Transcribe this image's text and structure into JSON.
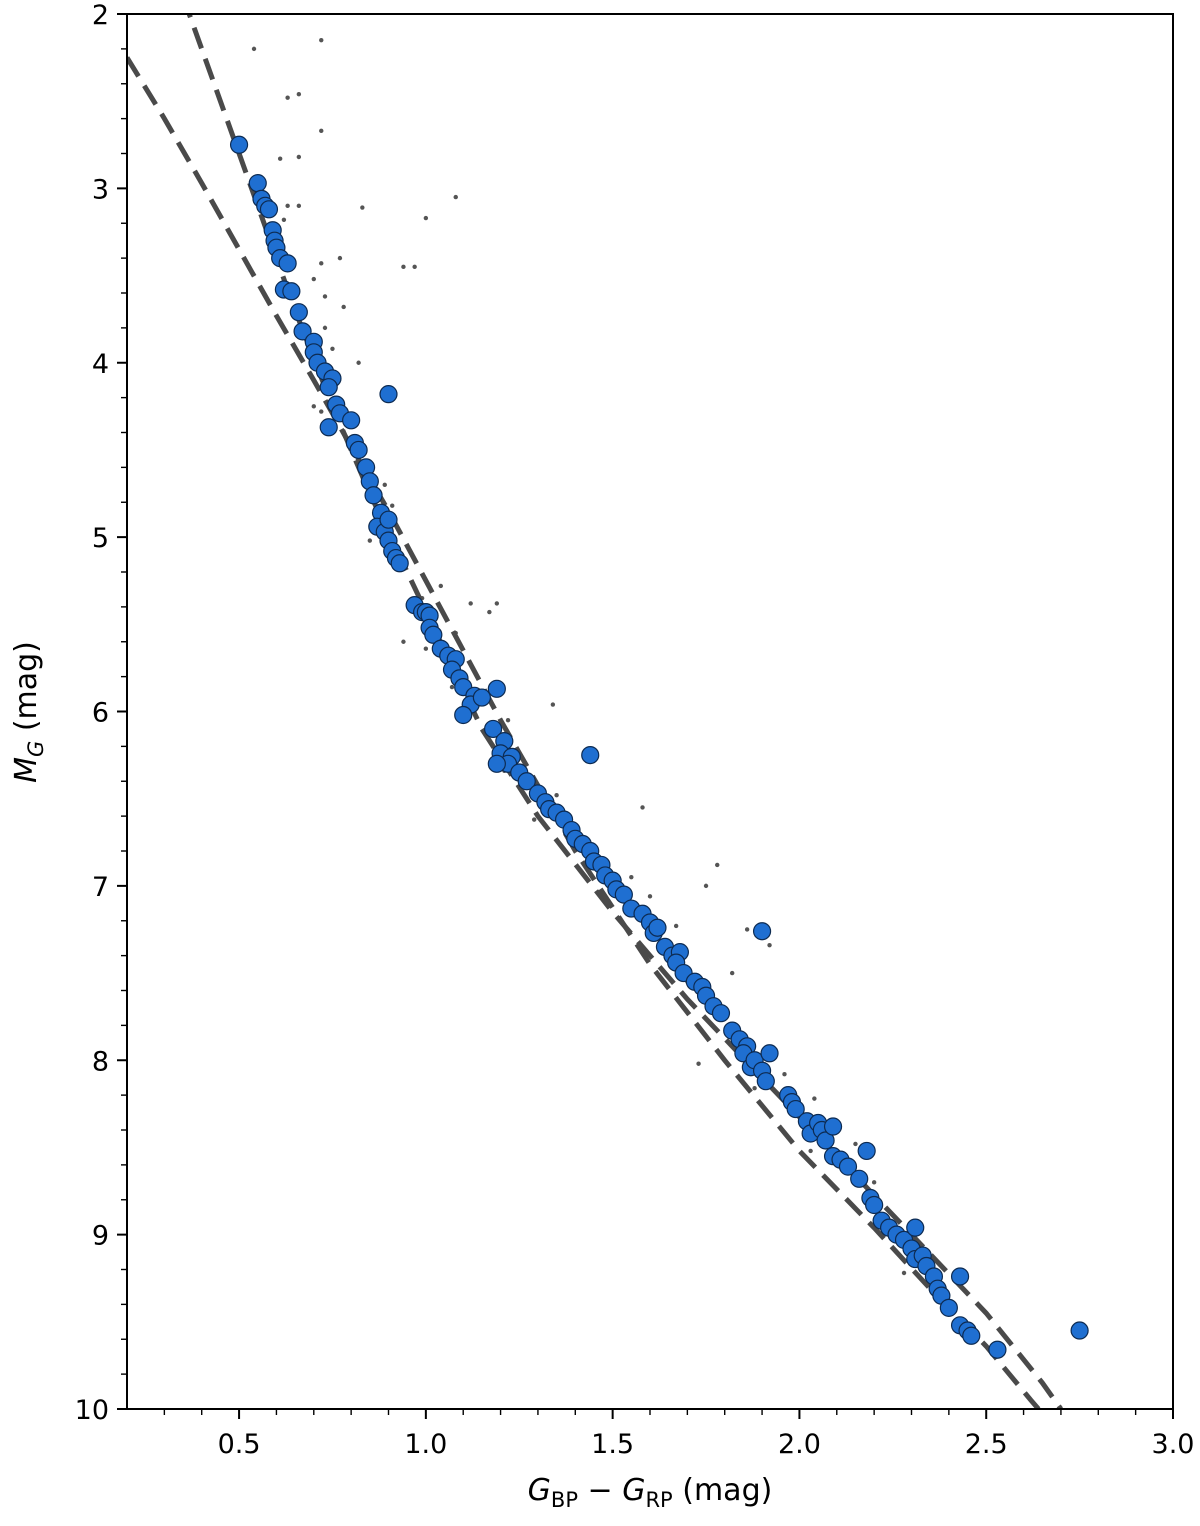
{
  "chart_data": {
    "type": "scatter",
    "title": "",
    "xlabel": {
      "main": "G",
      "sub1": "BP",
      "minus": " − ",
      "main2": "G",
      "sub2": "RP",
      "unit": " (mag)"
    },
    "ylabel": {
      "main": "M",
      "sub": "G",
      "unit": " (mag)"
    },
    "xlim": [
      0.2,
      3.0
    ],
    "ylim": [
      10,
      2
    ],
    "y_inverted": true,
    "grid": false,
    "x_ticks": [
      "0.5",
      "1.0",
      "1.5",
      "2.0",
      "2.5",
      "3.0"
    ],
    "y_ticks": [
      "2",
      "3",
      "4",
      "5",
      "6",
      "7",
      "8",
      "9",
      "10"
    ],
    "colors": {
      "members": "#1f6fd1",
      "members_edge": "#0d2b52",
      "field": "#555555",
      "fit": "#4a4a4a"
    },
    "series": [
      {
        "kind": "members",
        "points": [
          [
            0.5,
            2.75
          ],
          [
            0.55,
            2.97
          ],
          [
            0.56,
            3.06
          ],
          [
            0.57,
            3.1
          ],
          [
            0.58,
            3.12
          ],
          [
            0.59,
            3.24
          ],
          [
            0.595,
            3.3
          ],
          [
            0.6,
            3.34
          ],
          [
            0.61,
            3.4
          ],
          [
            0.63,
            3.43
          ],
          [
            0.62,
            3.58
          ],
          [
            0.64,
            3.59
          ],
          [
            0.66,
            3.71
          ],
          [
            0.67,
            3.82
          ],
          [
            0.7,
            3.88
          ],
          [
            0.7,
            3.94
          ],
          [
            0.71,
            4.0
          ],
          [
            0.73,
            4.05
          ],
          [
            0.75,
            4.09
          ],
          [
            0.74,
            4.14
          ],
          [
            0.76,
            4.24
          ],
          [
            0.77,
            4.29
          ],
          [
            0.8,
            4.33
          ],
          [
            0.74,
            4.37
          ],
          [
            0.81,
            4.46
          ],
          [
            0.82,
            4.5
          ],
          [
            0.84,
            4.6
          ],
          [
            0.85,
            4.68
          ],
          [
            0.86,
            4.76
          ],
          [
            0.88,
            4.86
          ],
          [
            0.87,
            4.94
          ],
          [
            0.89,
            4.97
          ],
          [
            0.9,
            4.9
          ],
          [
            0.9,
            5.02
          ],
          [
            0.91,
            5.08
          ],
          [
            0.92,
            5.12
          ],
          [
            0.93,
            5.15
          ],
          [
            0.97,
            5.39
          ],
          [
            0.99,
            5.43
          ],
          [
            1.0,
            5.43
          ],
          [
            1.01,
            5.45
          ],
          [
            1.01,
            5.52
          ],
          [
            1.02,
            5.56
          ],
          [
            1.04,
            5.64
          ],
          [
            1.06,
            5.68
          ],
          [
            1.08,
            5.7
          ],
          [
            1.07,
            5.76
          ],
          [
            1.09,
            5.81
          ],
          [
            1.1,
            5.86
          ],
          [
            1.13,
            5.91
          ],
          [
            1.12,
            5.96
          ],
          [
            1.15,
            5.92
          ],
          [
            1.1,
            6.02
          ],
          [
            1.19,
            5.87
          ],
          [
            1.18,
            6.1
          ],
          [
            1.21,
            6.17
          ],
          [
            1.2,
            6.24
          ],
          [
            1.23,
            6.26
          ],
          [
            1.22,
            6.3
          ],
          [
            1.19,
            6.3
          ],
          [
            1.25,
            6.35
          ],
          [
            1.27,
            6.4
          ],
          [
            1.3,
            6.47
          ],
          [
            1.32,
            6.52
          ],
          [
            1.33,
            6.56
          ],
          [
            1.35,
            6.58
          ],
          [
            1.37,
            6.62
          ],
          [
            1.39,
            6.68
          ],
          [
            1.4,
            6.73
          ],
          [
            1.42,
            6.76
          ],
          [
            1.44,
            6.8
          ],
          [
            1.45,
            6.86
          ],
          [
            1.47,
            6.88
          ],
          [
            1.48,
            6.94
          ],
          [
            1.5,
            6.97
          ],
          [
            1.51,
            7.02
          ],
          [
            1.53,
            7.05
          ],
          [
            1.55,
            7.13
          ],
          [
            1.58,
            7.16
          ],
          [
            1.6,
            7.21
          ],
          [
            1.61,
            7.27
          ],
          [
            1.62,
            7.24
          ],
          [
            1.64,
            7.35
          ],
          [
            1.66,
            7.4
          ],
          [
            1.68,
            7.38
          ],
          [
            1.67,
            7.44
          ],
          [
            1.69,
            7.5
          ],
          [
            1.72,
            7.55
          ],
          [
            1.74,
            7.58
          ],
          [
            1.75,
            7.63
          ],
          [
            1.77,
            7.69
          ],
          [
            1.79,
            7.73
          ],
          [
            1.82,
            7.83
          ],
          [
            1.84,
            7.88
          ],
          [
            1.86,
            7.92
          ],
          [
            1.85,
            7.96
          ],
          [
            1.87,
            8.04
          ],
          [
            1.88,
            8.0
          ],
          [
            1.9,
            8.06
          ],
          [
            1.91,
            8.12
          ],
          [
            1.92,
            7.96
          ],
          [
            1.44,
            6.25
          ],
          [
            0.9,
            4.18
          ],
          [
            1.9,
            7.26
          ],
          [
            1.97,
            8.2
          ],
          [
            1.98,
            8.24
          ],
          [
            1.99,
            8.28
          ],
          [
            2.02,
            8.35
          ],
          [
            2.03,
            8.42
          ],
          [
            2.05,
            8.36
          ],
          [
            2.06,
            8.4
          ],
          [
            2.07,
            8.46
          ],
          [
            2.09,
            8.38
          ],
          [
            2.09,
            8.55
          ],
          [
            2.11,
            8.57
          ],
          [
            2.13,
            8.61
          ],
          [
            2.16,
            8.68
          ],
          [
            2.18,
            8.52
          ],
          [
            2.19,
            8.79
          ],
          [
            2.2,
            8.83
          ],
          [
            2.22,
            8.92
          ],
          [
            2.24,
            8.96
          ],
          [
            2.26,
            9.0
          ],
          [
            2.28,
            9.03
          ],
          [
            2.3,
            9.08
          ],
          [
            2.31,
            8.96
          ],
          [
            2.31,
            9.14
          ],
          [
            2.33,
            9.12
          ],
          [
            2.34,
            9.18
          ],
          [
            2.36,
            9.24
          ],
          [
            2.37,
            9.31
          ],
          [
            2.38,
            9.35
          ],
          [
            2.4,
            9.42
          ],
          [
            2.43,
            9.52
          ],
          [
            2.45,
            9.55
          ],
          [
            2.46,
            9.58
          ],
          [
            2.43,
            9.24
          ],
          [
            2.53,
            9.66
          ],
          [
            2.75,
            9.55
          ]
        ]
      },
      {
        "kind": "field",
        "points": [
          [
            0.54,
            2.2
          ],
          [
            0.72,
            2.15
          ],
          [
            0.63,
            2.48
          ],
          [
            0.66,
            2.46
          ],
          [
            0.72,
            2.67
          ],
          [
            0.61,
            2.83
          ],
          [
            0.66,
            2.82
          ],
          [
            0.63,
            3.1
          ],
          [
            0.66,
            3.1
          ],
          [
            0.83,
            3.11
          ],
          [
            0.62,
            3.18
          ],
          [
            1.0,
            3.17
          ],
          [
            1.08,
            3.05
          ],
          [
            0.94,
            3.45
          ],
          [
            0.97,
            3.45
          ],
          [
            0.72,
            3.43
          ],
          [
            0.77,
            3.4
          ],
          [
            0.73,
            3.62
          ],
          [
            0.7,
            3.52
          ],
          [
            0.78,
            3.68
          ],
          [
            0.73,
            3.8
          ],
          [
            0.75,
            3.92
          ],
          [
            0.82,
            4.0
          ],
          [
            0.74,
            4.1
          ],
          [
            0.7,
            4.25
          ],
          [
            0.72,
            4.28
          ],
          [
            0.81,
            4.52
          ],
          [
            0.89,
            4.7
          ],
          [
            0.91,
            4.82
          ],
          [
            0.85,
            5.02
          ],
          [
            0.96,
            5.4
          ],
          [
            0.99,
            5.35
          ],
          [
            1.04,
            5.28
          ],
          [
            1.12,
            5.38
          ],
          [
            1.19,
            5.38
          ],
          [
            0.94,
            5.6
          ],
          [
            1.08,
            5.55
          ],
          [
            1.17,
            5.43
          ],
          [
            1.0,
            5.64
          ],
          [
            1.07,
            5.86
          ],
          [
            1.22,
            6.05
          ],
          [
            1.34,
            5.96
          ],
          [
            1.21,
            6.34
          ],
          [
            1.35,
            6.48
          ],
          [
            1.29,
            6.62
          ],
          [
            1.42,
            6.75
          ],
          [
            1.58,
            6.55
          ],
          [
            1.48,
            6.9
          ],
          [
            1.55,
            6.95
          ],
          [
            1.6,
            7.06
          ],
          [
            1.78,
            6.88
          ],
          [
            1.75,
            7.0
          ],
          [
            1.67,
            7.23
          ],
          [
            1.86,
            7.25
          ],
          [
            1.92,
            7.34
          ],
          [
            1.7,
            7.55
          ],
          [
            1.69,
            7.7
          ],
          [
            1.82,
            7.5
          ],
          [
            1.73,
            8.02
          ],
          [
            1.96,
            8.08
          ],
          [
            1.88,
            8.16
          ],
          [
            2.04,
            8.22
          ],
          [
            2.03,
            8.52
          ],
          [
            2.15,
            8.48
          ],
          [
            2.2,
            8.7
          ],
          [
            2.28,
            9.22
          ],
          [
            2.34,
            9.1
          ]
        ]
      }
    ],
    "fit_curves": [
      {
        "kind": "steep",
        "points": [
          [
            0.35,
            1.9
          ],
          [
            0.45,
            2.5
          ],
          [
            0.55,
            3.1
          ],
          [
            0.65,
            3.7
          ],
          [
            0.75,
            4.25
          ],
          [
            0.85,
            4.75
          ],
          [
            0.95,
            5.2
          ],
          [
            1.05,
            5.65
          ],
          [
            1.15,
            6.1
          ],
          [
            1.3,
            6.6
          ],
          [
            1.5,
            7.15
          ],
          [
            1.7,
            7.65
          ],
          [
            1.9,
            8.1
          ],
          [
            2.1,
            8.55
          ],
          [
            2.3,
            9.0
          ],
          [
            2.5,
            9.45
          ],
          [
            2.65,
            9.85
          ],
          [
            2.7,
            10.0
          ]
        ]
      },
      {
        "kind": "shallow",
        "points": [
          [
            0.2,
            2.25
          ],
          [
            0.3,
            2.6
          ],
          [
            0.4,
            2.97
          ],
          [
            0.5,
            3.35
          ],
          [
            0.6,
            3.73
          ],
          [
            0.7,
            4.1
          ],
          [
            0.8,
            4.48
          ],
          [
            0.9,
            4.85
          ],
          [
            1.0,
            5.25
          ],
          [
            1.2,
            6.05
          ],
          [
            1.4,
            6.8
          ],
          [
            1.6,
            7.45
          ],
          [
            1.8,
            8.0
          ],
          [
            2.0,
            8.52
          ],
          [
            2.2,
            8.96
          ],
          [
            2.35,
            9.31
          ],
          [
            2.5,
            9.64
          ],
          [
            2.62,
            9.95
          ],
          [
            2.64,
            10.0
          ]
        ]
      }
    ]
  }
}
